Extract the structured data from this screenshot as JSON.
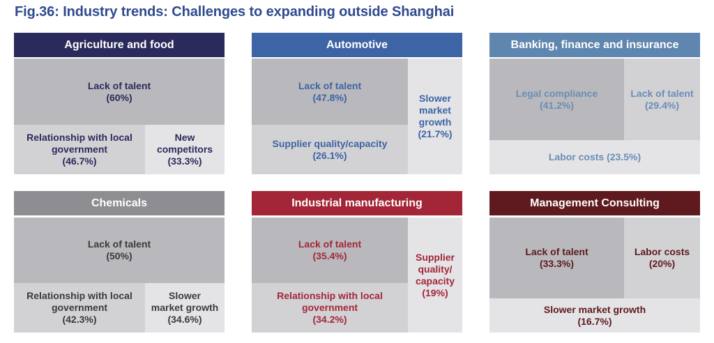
{
  "title": "Fig.36:  Industry trends: Challenges to expanding outside Shanghai",
  "chart_data": {
    "type": "treemap",
    "title": "Fig.36:  Industry trends: Challenges to expanding outside Shanghai",
    "panels": [
      {
        "industry": "Agriculture and food",
        "header_color": "#2b2a5c",
        "text_color": "#2b2a5c",
        "cells": [
          {
            "label": "Lack of talent",
            "value_text": "(60%)",
            "value": 60
          },
          {
            "label": "Relationship with local government",
            "value_text": "(46.7%)",
            "value": 46.7
          },
          {
            "label": "New competitors",
            "value_text": "(33.3%)",
            "value": 33.3
          }
        ]
      },
      {
        "industry": "Automotive",
        "header_color": "#3d64a4",
        "text_color": "#3d64a4",
        "cells": [
          {
            "label": "Lack of talent",
            "value_text": "(47.8%)",
            "value": 47.8
          },
          {
            "label": "Supplier quality/capacity",
            "value_text": "(26.1%)",
            "value": 26.1
          },
          {
            "label": "Slower market growth",
            "value_text": "(21.7%)",
            "value": 21.7
          }
        ]
      },
      {
        "industry": "Banking, finance and insurance",
        "header_color": "#5f86ae",
        "text_color": "#6a8db5",
        "cells": [
          {
            "label": "Legal compliance",
            "value_text": "(41.2%)",
            "value": 41.2
          },
          {
            "label": "Lack of talent",
            "value_text": "(29.4%)",
            "value": 29.4
          },
          {
            "label": "Labor costs (23.5%)",
            "value_text": "",
            "value": 23.5
          }
        ]
      },
      {
        "industry": "Chemicals",
        "header_color": "#8e8e92",
        "text_color": "#3a3a3a",
        "cells": [
          {
            "label": "Lack of talent",
            "value_text": "(50%)",
            "value": 50
          },
          {
            "label": "Relationship with local government",
            "value_text": "(42.3%)",
            "value": 42.3
          },
          {
            "label": "Slower market growth",
            "value_text": "(34.6%)",
            "value": 34.6
          }
        ]
      },
      {
        "industry": "Industrial manufacturing",
        "header_color": "#a32638",
        "text_color": "#a32638",
        "cells": [
          {
            "label": "Lack of talent",
            "value_text": "(35.4%)",
            "value": 35.4
          },
          {
            "label": "Relationship with local government",
            "value_text": "(34.2%)",
            "value": 34.2
          },
          {
            "label": "Supplier quality/ capacity",
            "value_text": "(19%)",
            "value": 19
          }
        ]
      },
      {
        "industry": "Management Consulting",
        "header_color": "#5e1a1e",
        "text_color": "#5e1a1e",
        "cells": [
          {
            "label": "Lack of talent",
            "value_text": "(33.3%)",
            "value": 33.3
          },
          {
            "label": "Labor costs",
            "value_text": "(20%)",
            "value": 20
          },
          {
            "label": "Slower market growth",
            "value_text": "(16.7%)",
            "value": 16.7
          }
        ]
      }
    ]
  },
  "colors": {
    "cell_dark": "#b9b9bd",
    "cell_mid": "#d2d2d5",
    "cell_light": "#e4e4e7"
  }
}
